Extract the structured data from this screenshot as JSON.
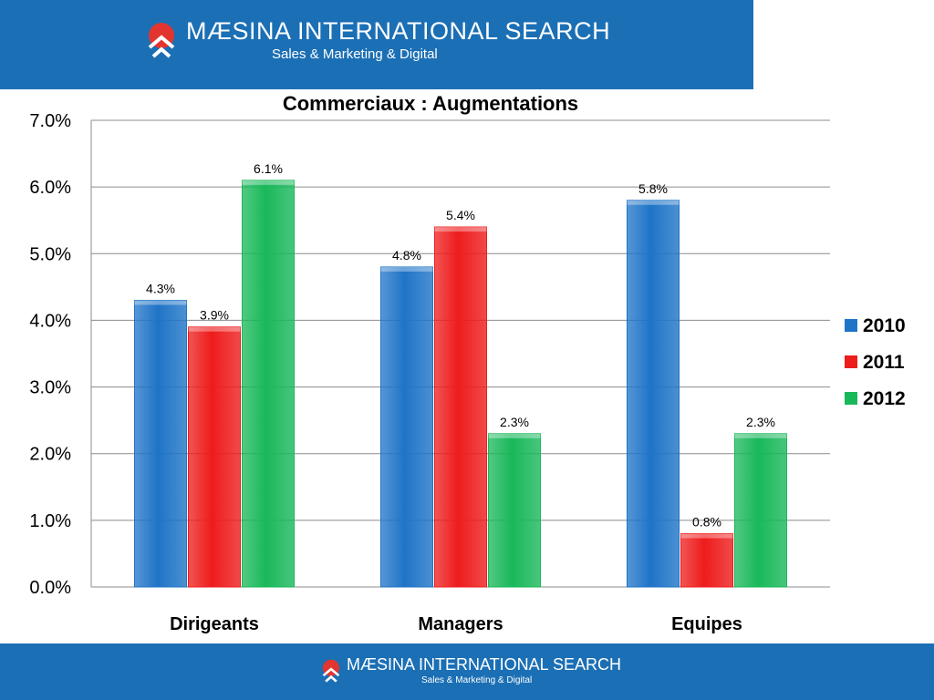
{
  "header": {
    "brand_name": "MÆSINA INTERNATIONAL SEARCH",
    "brand_tagline": "Sales & Marketing & Digital"
  },
  "footer": {
    "brand_name": "MÆSINA INTERNATIONAL SEARCH",
    "brand_tagline": "Sales & Marketing & Digital"
  },
  "colors": {
    "brand_blue": "#1b6fb5",
    "logo_red": "#e2352f",
    "s2010": "#1f74c7",
    "s2011": "#ee1c1c",
    "s2012": "#19b85a"
  },
  "chart_data": {
    "type": "bar",
    "title": "Commerciaux : Augmentations",
    "xlabel": "",
    "ylabel": "",
    "categories": [
      "Dirigeants",
      "Managers",
      "Equipes"
    ],
    "series": [
      {
        "name": "2010",
        "values": [
          4.3,
          4.8,
          5.8
        ],
        "labels": [
          "4.3%",
          "4.8%",
          "5.8%"
        ]
      },
      {
        "name": "2011",
        "values": [
          3.9,
          5.4,
          0.8
        ],
        "labels": [
          "3.9%",
          "5.4%",
          "0.8%"
        ]
      },
      {
        "name": "2012",
        "values": [
          6.1,
          2.3,
          2.3
        ],
        "labels": [
          "6.1%",
          "2.3%",
          "2.3%"
        ]
      }
    ],
    "ylim": [
      0,
      7
    ],
    "yticks": [
      "0.0%",
      "1.0%",
      "2.0%",
      "3.0%",
      "4.0%",
      "5.0%",
      "6.0%",
      "7.0%"
    ],
    "grid": true,
    "legend": "right"
  }
}
